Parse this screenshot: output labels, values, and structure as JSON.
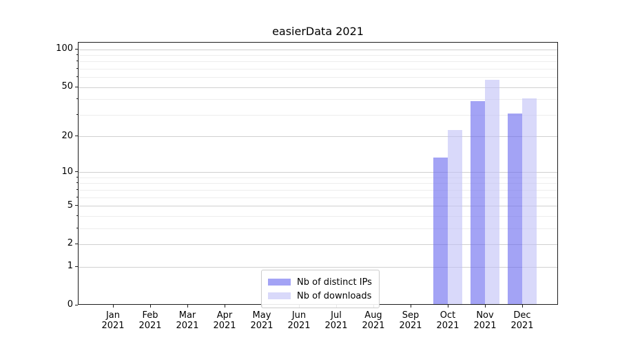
{
  "chart_data": {
    "type": "bar",
    "title": "easierData 2021",
    "categories": [
      {
        "label": "Jan",
        "sublabel": "2021"
      },
      {
        "label": "Feb",
        "sublabel": "2021"
      },
      {
        "label": "Mar",
        "sublabel": "2021"
      },
      {
        "label": "Apr",
        "sublabel": "2021"
      },
      {
        "label": "May",
        "sublabel": "2021"
      },
      {
        "label": "Jun",
        "sublabel": "2021"
      },
      {
        "label": "Jul",
        "sublabel": "2021"
      },
      {
        "label": "Aug",
        "sublabel": "2021"
      },
      {
        "label": "Sep",
        "sublabel": "2021"
      },
      {
        "label": "Oct",
        "sublabel": "2021"
      },
      {
        "label": "Nov",
        "sublabel": "2021"
      },
      {
        "label": "Dec",
        "sublabel": "2021"
      }
    ],
    "series": [
      {
        "name": "Nb of distinct IPs",
        "color": "rgba(102,102,238,0.6)",
        "values": [
          0,
          0,
          0,
          0,
          0,
          0,
          0,
          0,
          0,
          13,
          38,
          30
        ]
      },
      {
        "name": "Nb of downloads",
        "color": "rgba(191,191,246,0.6)",
        "values": [
          0,
          0,
          0,
          0,
          0,
          0,
          0,
          0,
          0,
          22,
          56,
          40
        ]
      }
    ],
    "xlabel": "",
    "ylabel": "",
    "scale": "log1p",
    "ylim": [
      0,
      113.6
    ],
    "yticks": [
      0,
      1,
      2,
      5,
      10,
      20,
      50,
      100
    ],
    "minor_yticks": [
      3,
      4,
      6,
      7,
      8,
      9,
      30,
      40,
      60,
      70,
      80,
      90
    ],
    "grid": true,
    "legend_position": "lower center inside",
    "grid_major_color": "#d0d0d0",
    "grid_minor_color": "#ededed"
  }
}
